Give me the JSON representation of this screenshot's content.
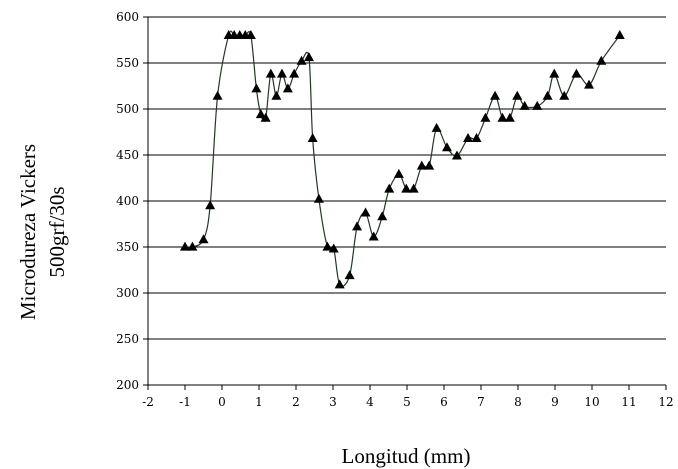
{
  "chart_data": {
    "type": "line",
    "title": "",
    "xlabel": "Longitud (mm)",
    "ylabel": [
      "Microdureza Vickers",
      "500grf/30s"
    ],
    "xlim": [
      -2,
      12
    ],
    "ylim": [
      200,
      600
    ],
    "x_ticks": [
      -2,
      -1,
      0,
      1,
      2,
      3,
      4,
      5,
      6,
      7,
      8,
      9,
      10,
      11,
      12
    ],
    "y_ticks": [
      200,
      250,
      300,
      350,
      400,
      450,
      500,
      550,
      600
    ],
    "grid": "horizontal",
    "legend": "none",
    "series": [
      {
        "marker": "triangle",
        "line_color": "#1f3a1f",
        "marker_color": "#000000",
        "x": [
          -1.0,
          -0.8,
          -0.5,
          -0.32,
          -0.12,
          0.18,
          0.33,
          0.48,
          0.63,
          0.78,
          0.93,
          1.05,
          1.18,
          1.32,
          1.47,
          1.62,
          1.78,
          1.95,
          2.15,
          2.35,
          2.45,
          2.62,
          2.85,
          3.02,
          3.18,
          3.45,
          3.65,
          3.88,
          4.1,
          4.33,
          4.52,
          4.78,
          4.98,
          5.18,
          5.4,
          5.6,
          5.8,
          6.08,
          6.35,
          6.65,
          6.88,
          7.12,
          7.38,
          7.58,
          7.78,
          7.98,
          8.18,
          8.52,
          8.8,
          8.98,
          9.25,
          9.58,
          9.92,
          10.25,
          10.75
        ],
        "y": [
          350,
          350,
          358,
          395,
          514,
          580,
          580,
          580,
          580,
          580,
          522,
          494,
          490,
          538,
          514,
          538,
          522,
          538,
          552,
          556,
          468,
          402,
          350,
          348,
          309,
          319,
          372,
          387,
          361,
          383,
          413,
          429,
          413,
          413,
          438,
          438,
          479,
          458,
          449,
          468,
          468,
          490,
          514,
          490,
          490,
          514,
          503,
          503,
          514,
          538,
          514,
          538,
          526,
          552,
          580
        ]
      }
    ]
  }
}
